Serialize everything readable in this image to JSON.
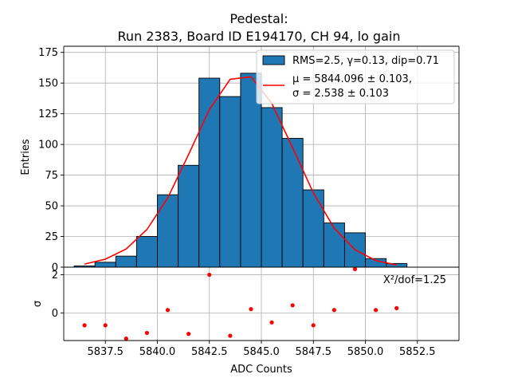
{
  "chart_data": [
    {
      "type": "bar",
      "title": "Pedestal:",
      "subtitle": "Run 2383, Board ID E194170, CH 94, lo gain",
      "xlabel": "",
      "ylabel": "Entries",
      "xlim": [
        5835.5,
        5854.5
      ],
      "ylim": [
        0,
        180
      ],
      "yticks": [
        0,
        25,
        50,
        75,
        100,
        125,
        150,
        175
      ],
      "ytick_labels": [
        "0",
        "25",
        "50",
        "75",
        "100",
        "125",
        "150",
        "175"
      ],
      "grid": true,
      "legend_position": "top-right",
      "bar_color": "#1f77b4",
      "fit_color": "#ff0000",
      "bin_edges": [
        5836,
        5837,
        5838,
        5839,
        5840,
        5841,
        5842,
        5843,
        5844,
        5845,
        5846,
        5847,
        5848,
        5849,
        5850,
        5851,
        5852
      ],
      "counts": [
        1,
        4,
        9,
        25,
        59,
        83,
        154,
        139,
        158,
        130,
        105,
        63,
        36,
        28,
        7,
        3
      ],
      "fit": {
        "x": [
          5836.5,
          5837.5,
          5838.5,
          5839.5,
          5840.5,
          5841.5,
          5842.5,
          5843.5,
          5844.5,
          5845.5,
          5846.5,
          5847.5,
          5848.5,
          5849.5,
          5850.5,
          5851.5
        ],
        "y": [
          2.5,
          6.5,
          14.8,
          30.7,
          56.5,
          91.8,
          128.4,
          153.1,
          155.1,
          133.5,
          97.4,
          60.5,
          31.8,
          14.2,
          5.4,
          1.8
        ]
      },
      "legend": {
        "hist_label": "RMS=2.5, γ=0.13, dip=0.71",
        "fit_label_mu": "μ = 5844.096 ± 0.103,",
        "fit_label_sigma": "σ = 2.538 ± 0.103"
      }
    },
    {
      "type": "scatter",
      "xlabel": "ADC Counts",
      "ylabel": "σ",
      "xlim": [
        5835.5,
        5854.5
      ],
      "ylim": [
        -1.45,
        2.4
      ],
      "yticks": [
        0,
        2
      ],
      "ytick_labels": [
        "0",
        "2"
      ],
      "xticks": [
        5837.5,
        5840.0,
        5842.5,
        5845.0,
        5847.5,
        5850.0,
        5852.5
      ],
      "xtick_labels": [
        "5837.5",
        "5840.0",
        "5842.5",
        "5845.0",
        "5847.5",
        "5850.0",
        "5852.5"
      ],
      "grid": true,
      "point_color": "#ff0000",
      "annotation": "X²/dof=1.25",
      "x": [
        5836.5,
        5837.5,
        5838.5,
        5839.5,
        5840.5,
        5841.5,
        5842.5,
        5843.5,
        5844.5,
        5845.5,
        5846.5,
        5847.5,
        5848.5,
        5849.5,
        5850.5,
        5851.5
      ],
      "y": [
        -0.65,
        -0.65,
        -1.35,
        -1.05,
        0.15,
        -1.1,
        2.0,
        -1.2,
        0.2,
        -0.5,
        0.4,
        -0.65,
        0.15,
        2.3,
        0.15,
        0.25
      ]
    }
  ]
}
